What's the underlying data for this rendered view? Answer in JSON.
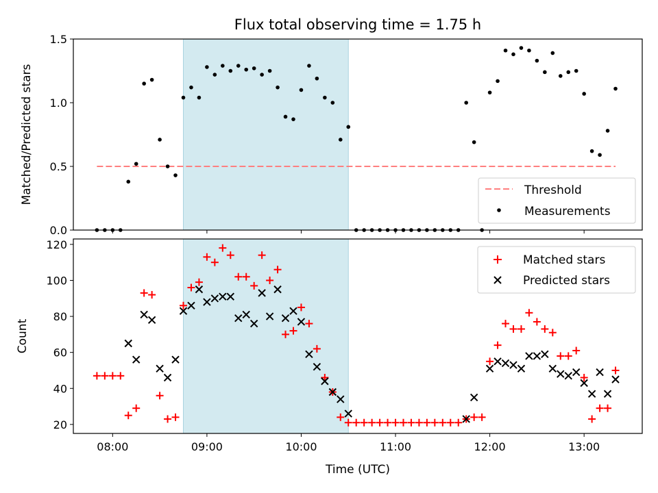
{
  "chart_data": [
    {
      "type": "scatter",
      "title": "Flux total observing time = 1.75 h",
      "xlabel": "",
      "ylabel": "Matched/Predicted stars",
      "ylim": [
        0,
        1.5
      ],
      "xlim": [
        "07:35",
        "13:37"
      ],
      "yticks": [
        "0.0",
        "0.5",
        "1.0",
        "1.5"
      ],
      "legend_position": "lower-right",
      "shaded_interval": [
        "08:45",
        "10:30"
      ],
      "shaded_color": "#d3eaf0",
      "threshold": {
        "name": "Threshold",
        "value": 0.5,
        "x_range": [
          "07:50",
          "13:20"
        ],
        "color": "#ff7f7f",
        "style": "dashed"
      },
      "series": [
        {
          "name": "Measurements",
          "color": "#000000",
          "points": [
            [
              "07:50",
              0.0
            ],
            [
              "07:55",
              0.0
            ],
            [
              "08:00",
              0.0
            ],
            [
              "08:05",
              0.0
            ],
            [
              "08:10",
              0.38
            ],
            [
              "08:15",
              0.52
            ],
            [
              "08:20",
              1.15
            ],
            [
              "08:25",
              1.18
            ],
            [
              "08:30",
              0.71
            ],
            [
              "08:35",
              0.5
            ],
            [
              "08:40",
              0.43
            ],
            [
              "08:45",
              1.04
            ],
            [
              "08:50",
              1.12
            ],
            [
              "08:55",
              1.04
            ],
            [
              "09:00",
              1.28
            ],
            [
              "09:05",
              1.22
            ],
            [
              "09:10",
              1.29
            ],
            [
              "09:15",
              1.25
            ],
            [
              "09:20",
              1.29
            ],
            [
              "09:25",
              1.26
            ],
            [
              "09:30",
              1.27
            ],
            [
              "09:35",
              1.22
            ],
            [
              "09:40",
              1.25
            ],
            [
              "09:45",
              1.12
            ],
            [
              "09:50",
              0.89
            ],
            [
              "09:55",
              0.87
            ],
            [
              "10:00",
              1.1
            ],
            [
              "10:05",
              1.29
            ],
            [
              "10:10",
              1.19
            ],
            [
              "10:15",
              1.04
            ],
            [
              "10:20",
              1.0
            ],
            [
              "10:25",
              0.71
            ],
            [
              "10:30",
              0.81
            ],
            [
              "10:35",
              0.0
            ],
            [
              "10:40",
              0.0
            ],
            [
              "10:45",
              0.0
            ],
            [
              "10:50",
              0.0
            ],
            [
              "10:55",
              0.0
            ],
            [
              "11:00",
              0.0
            ],
            [
              "11:05",
              0.0
            ],
            [
              "11:10",
              0.0
            ],
            [
              "11:15",
              0.0
            ],
            [
              "11:20",
              0.0
            ],
            [
              "11:25",
              0.0
            ],
            [
              "11:30",
              0.0
            ],
            [
              "11:35",
              0.0
            ],
            [
              "11:40",
              0.0
            ],
            [
              "11:45",
              1.0
            ],
            [
              "11:50",
              0.69
            ],
            [
              "11:55",
              0.0
            ],
            [
              "12:00",
              1.08
            ],
            [
              "12:05",
              1.17
            ],
            [
              "12:10",
              1.41
            ],
            [
              "12:15",
              1.38
            ],
            [
              "12:20",
              1.43
            ],
            [
              "12:25",
              1.41
            ],
            [
              "12:30",
              1.33
            ],
            [
              "12:35",
              1.24
            ],
            [
              "12:40",
              1.39
            ],
            [
              "12:45",
              1.21
            ],
            [
              "12:50",
              1.24
            ],
            [
              "12:55",
              1.25
            ],
            [
              "13:00",
              1.07
            ],
            [
              "13:05",
              0.62
            ],
            [
              "13:10",
              0.59
            ],
            [
              "13:15",
              0.78
            ],
            [
              "13:20",
              1.11
            ]
          ]
        }
      ]
    },
    {
      "type": "scatter",
      "title": "",
      "xlabel": "Time (UTC)",
      "ylabel": "Count",
      "ylim": [
        15,
        123
      ],
      "xlim": [
        "07:35",
        "13:37"
      ],
      "yticks": [
        "20",
        "40",
        "60",
        "80",
        "100",
        "120"
      ],
      "xticks": [
        "08:00",
        "09:00",
        "10:00",
        "11:00",
        "12:00",
        "13:00"
      ],
      "legend_position": "top-right",
      "shaded_interval": [
        "08:45",
        "10:30"
      ],
      "shaded_color": "#d3eaf0",
      "series": [
        {
          "name": "Matched stars",
          "marker": "plus",
          "color": "#ff0000",
          "points": [
            [
              "07:50",
              47
            ],
            [
              "07:55",
              47
            ],
            [
              "08:00",
              47
            ],
            [
              "08:05",
              47
            ],
            [
              "08:10",
              25
            ],
            [
              "08:15",
              29
            ],
            [
              "08:20",
              93
            ],
            [
              "08:25",
              92
            ],
            [
              "08:30",
              36
            ],
            [
              "08:35",
              23
            ],
            [
              "08:40",
              24
            ],
            [
              "08:45",
              86
            ],
            [
              "08:50",
              96
            ],
            [
              "08:55",
              99
            ],
            [
              "09:00",
              113
            ],
            [
              "09:05",
              110
            ],
            [
              "09:10",
              118
            ],
            [
              "09:15",
              114
            ],
            [
              "09:20",
              102
            ],
            [
              "09:25",
              102
            ],
            [
              "09:30",
              97
            ],
            [
              "09:35",
              114
            ],
            [
              "09:40",
              100
            ],
            [
              "09:45",
              106
            ],
            [
              "09:50",
              70
            ],
            [
              "09:55",
              72
            ],
            [
              "10:00",
              85
            ],
            [
              "10:05",
              76
            ],
            [
              "10:10",
              62
            ],
            [
              "10:15",
              46
            ],
            [
              "10:20",
              38
            ],
            [
              "10:25",
              24
            ],
            [
              "10:30",
              21
            ],
            [
              "10:35",
              21
            ],
            [
              "10:40",
              21
            ],
            [
              "10:45",
              21
            ],
            [
              "10:50",
              21
            ],
            [
              "10:55",
              21
            ],
            [
              "11:00",
              21
            ],
            [
              "11:05",
              21
            ],
            [
              "11:10",
              21
            ],
            [
              "11:15",
              21
            ],
            [
              "11:20",
              21
            ],
            [
              "11:25",
              21
            ],
            [
              "11:30",
              21
            ],
            [
              "11:35",
              21
            ],
            [
              "11:40",
              21
            ],
            [
              "11:45",
              23
            ],
            [
              "11:50",
              24
            ],
            [
              "11:55",
              24
            ],
            [
              "12:00",
              55
            ],
            [
              "12:05",
              64
            ],
            [
              "12:10",
              76
            ],
            [
              "12:15",
              73
            ],
            [
              "12:20",
              73
            ],
            [
              "12:25",
              82
            ],
            [
              "12:30",
              77
            ],
            [
              "12:35",
              73
            ],
            [
              "12:40",
              71
            ],
            [
              "12:45",
              58
            ],
            [
              "12:50",
              58
            ],
            [
              "12:55",
              61
            ],
            [
              "13:00",
              46
            ],
            [
              "13:05",
              23
            ],
            [
              "13:10",
              29
            ],
            [
              "13:15",
              29
            ],
            [
              "13:20",
              50
            ]
          ]
        },
        {
          "name": "Predicted stars",
          "marker": "x",
          "color": "#000000",
          "points": [
            [
              "08:10",
              65
            ],
            [
              "08:15",
              56
            ],
            [
              "08:20",
              81
            ],
            [
              "08:25",
              78
            ],
            [
              "08:30",
              51
            ],
            [
              "08:35",
              46
            ],
            [
              "08:40",
              56
            ],
            [
              "08:45",
              83
            ],
            [
              "08:50",
              86
            ],
            [
              "08:55",
              95
            ],
            [
              "09:00",
              88
            ],
            [
              "09:05",
              90
            ],
            [
              "09:10",
              91
            ],
            [
              "09:15",
              91
            ],
            [
              "09:20",
              79
            ],
            [
              "09:25",
              81
            ],
            [
              "09:30",
              76
            ],
            [
              "09:35",
              93
            ],
            [
              "09:40",
              80
            ],
            [
              "09:45",
              95
            ],
            [
              "09:50",
              79
            ],
            [
              "09:55",
              83
            ],
            [
              "10:00",
              77
            ],
            [
              "10:05",
              59
            ],
            [
              "10:10",
              52
            ],
            [
              "10:15",
              44
            ],
            [
              "10:20",
              38
            ],
            [
              "10:25",
              34
            ],
            [
              "10:30",
              26
            ],
            [
              "11:45",
              23
            ],
            [
              "11:50",
              35
            ],
            [
              "12:00",
              51
            ],
            [
              "12:05",
              55
            ],
            [
              "12:10",
              54
            ],
            [
              "12:15",
              53
            ],
            [
              "12:20",
              51
            ],
            [
              "12:25",
              58
            ],
            [
              "12:30",
              58
            ],
            [
              "12:35",
              59
            ],
            [
              "12:40",
              51
            ],
            [
              "12:45",
              48
            ],
            [
              "12:50",
              47
            ],
            [
              "12:55",
              49
            ],
            [
              "13:00",
              43
            ],
            [
              "13:05",
              37
            ],
            [
              "13:10",
              49
            ],
            [
              "13:15",
              37
            ],
            [
              "13:20",
              45
            ]
          ]
        }
      ]
    }
  ]
}
